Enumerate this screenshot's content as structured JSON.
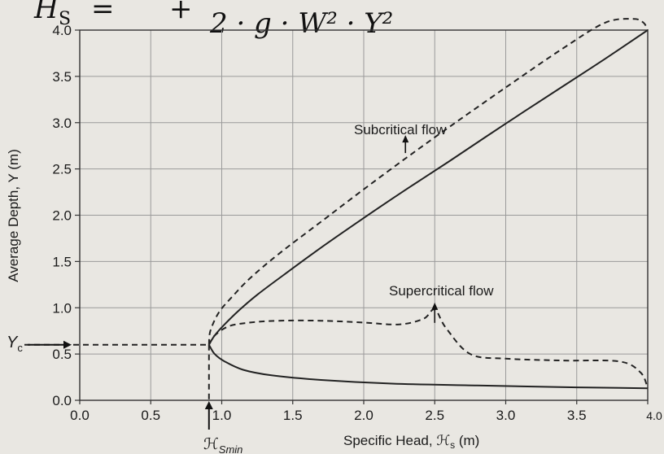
{
  "equation_fragment": {
    "lhs": "H",
    "lhs_sub": "S",
    "operator": "=",
    "plus": "+",
    "denominator": "2 · g · W² · Y²"
  },
  "chart_data": {
    "type": "line",
    "xlabel": "Specific Head, ℋ",
    "xlabel_sub": "s",
    "xlabel_unit": " (m)",
    "ylabel": "Average Depth, Y (m)",
    "xlim": [
      0.0,
      4.0
    ],
    "ylim": [
      0.0,
      4.0
    ],
    "xticks": [
      "0.0",
      "0.5",
      "1.0",
      "1.5",
      "2.0",
      "2.5",
      "3.0",
      "3.5",
      "4.0"
    ],
    "yticks": [
      "0.0",
      "0.5",
      "1.0",
      "1.5",
      "2.0",
      "2.5",
      "3.0",
      "3.5",
      "4.0"
    ],
    "grid": true,
    "annotations": {
      "subcritical": {
        "text": "Subcritical flow",
        "at": [
          2.5,
          2.9
        ]
      },
      "supercritical": {
        "text": "Supercritical flow",
        "at": [
          2.5,
          1.03
        ]
      },
      "yc_label": "Y",
      "yc_sub": "c",
      "hsmin_label": "ℋ",
      "hsmin_sub": "Smin"
    },
    "critical_point": {
      "x": 0.91,
      "y": 0.6
    },
    "series": [
      {
        "style": "solid",
        "x": [
          0.91,
          0.95,
          1.02,
          1.12,
          1.25,
          1.45,
          1.7,
          2.0,
          2.3,
          2.6,
          3.0,
          3.4,
          3.7,
          4.0
        ],
        "y": [
          0.6,
          0.7,
          0.82,
          0.97,
          1.14,
          1.37,
          1.65,
          1.97,
          2.28,
          2.58,
          2.99,
          3.39,
          3.69,
          4.0
        ]
      },
      {
        "style": "solid",
        "x": [
          0.91,
          0.95,
          1.02,
          1.15,
          1.35,
          1.7,
          2.2,
          2.8,
          3.5,
          4.0
        ],
        "y": [
          0.6,
          0.5,
          0.42,
          0.33,
          0.27,
          0.22,
          0.18,
          0.16,
          0.14,
          0.13
        ]
      },
      {
        "style": "dashed",
        "x": [
          0.91,
          0.92,
          0.98,
          1.08,
          1.2,
          1.4,
          1.7,
          2.0,
          2.3,
          2.6,
          3.0,
          3.4,
          3.7,
          3.9,
          3.97,
          4.0
        ],
        "y": [
          0.6,
          0.75,
          0.95,
          1.13,
          1.32,
          1.58,
          1.93,
          2.28,
          2.62,
          2.95,
          3.38,
          3.8,
          4.08,
          4.12,
          4.08,
          4.0
        ]
      },
      {
        "style": "dashed",
        "x": [
          0.91,
          0.95,
          1.05,
          1.2,
          1.4,
          1.7,
          2.0,
          2.25,
          2.42,
          2.5,
          2.58,
          2.75,
          3.0,
          3.4,
          3.8,
          3.95,
          4.0
        ],
        "y": [
          0.6,
          0.7,
          0.8,
          0.84,
          0.86,
          0.86,
          0.84,
          0.82,
          0.88,
          0.98,
          0.78,
          0.5,
          0.45,
          0.43,
          0.42,
          0.3,
          0.13
        ]
      }
    ]
  }
}
